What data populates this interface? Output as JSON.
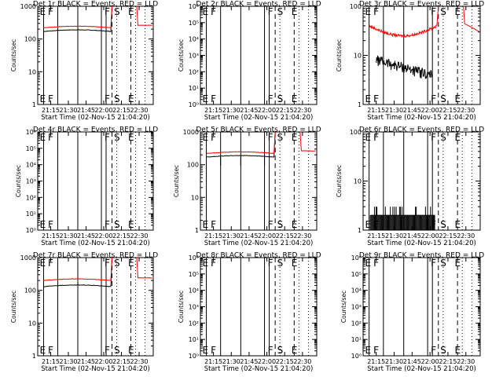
{
  "figure": {
    "colors": {
      "events": "#000000",
      "lld": "#ff0000",
      "background": "#ffffff"
    },
    "marker_label_ids": [
      "E",
      "F",
      "F",
      "S",
      "E"
    ],
    "marker_times": [
      "21:09",
      "21:21",
      "21:58",
      "22:07",
      "22:23"
    ]
  },
  "chart_data": [
    {
      "type": "line",
      "title": "Det 1r BLACK = Events, RED = LLD",
      "xlabel": "Start Time (02-Nov-15 21:04:20)",
      "ylabel": "Counts/sec",
      "yscale": "log",
      "ylim": [
        1,
        1000
      ],
      "yticks": [
        "1",
        "10",
        "100",
        "1000"
      ],
      "xticks": [
        "21:15",
        "21:30",
        "21:45",
        "22:00",
        "22:15",
        "22:30"
      ],
      "marker_labels": [
        "E",
        "F",
        "F",
        "S",
        "E"
      ],
      "series": [
        {
          "name": "Events",
          "color": "black",
          "approx_level": 170,
          "shape": "saa-plateau"
        },
        {
          "name": "LLD",
          "color": "red",
          "approx_level": 220,
          "shape": "saa-plateau"
        }
      ]
    },
    {
      "type": "line",
      "title": "Det 2r BLACK = Events, RED = LLD",
      "xlabel": "Start Time (02-Nov-15 21:04:20)",
      "ylabel": "Counts/sec",
      "yscale": "log",
      "ylim": [
        1,
        1000000
      ],
      "yticks": [
        "10⁰",
        "10¹",
        "10²",
        "10³",
        "10⁴",
        "10⁵",
        "10⁶"
      ],
      "xticks": [
        "21:15",
        "21:30",
        "21:45",
        "22:00",
        "22:15",
        "22:30"
      ],
      "marker_labels": [
        "E",
        "F",
        "F",
        "S",
        "E"
      ],
      "series": []
    },
    {
      "type": "line",
      "title": "Det 3r BLACK = Events, RED = LLD",
      "xlabel": "Start Time (02-Nov-15 21:04:20)",
      "ylabel": "Counts/sec",
      "yscale": "log",
      "ylim": [
        1,
        100
      ],
      "yticks": [
        "1",
        "10",
        "100"
      ],
      "xticks": [
        "21:15",
        "21:30",
        "21:45",
        "22:00",
        "22:15",
        "22:30"
      ],
      "marker_labels": [
        "E",
        "F",
        "F",
        "S",
        "E"
      ],
      "series": [
        {
          "name": "Events",
          "color": "black",
          "approx_level": 5,
          "shape": "noisy-decay"
        },
        {
          "name": "LLD",
          "color": "red",
          "approx_level": 25,
          "shape": "bowl"
        }
      ]
    },
    {
      "type": "line",
      "title": "Det 4r BLACK = Events, RED = LLD",
      "xlabel": "Start Time (02-Nov-15 21:04:20)",
      "ylabel": "Counts/sec",
      "yscale": "log",
      "ylim": [
        1,
        1000000
      ],
      "yticks": [
        "10⁰",
        "10¹",
        "10²",
        "10³",
        "10⁴",
        "10⁵",
        "10⁶"
      ],
      "xticks": [
        "21:15",
        "21:30",
        "21:45",
        "22:00",
        "22:15",
        "22:30"
      ],
      "marker_labels": [
        "E",
        "F",
        "F",
        "S",
        "E"
      ],
      "series": []
    },
    {
      "type": "line",
      "title": "Det 5r BLACK = Events, RED = LLD",
      "xlabel": "Start Time (02-Nov-15 21:04:20)",
      "ylabel": "Counts/sec",
      "yscale": "log",
      "ylim": [
        1,
        1000
      ],
      "yticks": [
        "1",
        "10",
        "100",
        "1000"
      ],
      "xticks": [
        "21:15",
        "21:30",
        "21:45",
        "22:00",
        "22:15",
        "22:30"
      ],
      "marker_labels": [
        "E",
        "F",
        "F",
        "S",
        "E"
      ],
      "series": [
        {
          "name": "Events",
          "color": "black",
          "approx_level": 170,
          "shape": "saa-plateau"
        },
        {
          "name": "LLD",
          "color": "red",
          "approx_level": 220,
          "shape": "saa-plateau"
        }
      ]
    },
    {
      "type": "line",
      "title": "Det 6r BLACK = Events, RED = LLD",
      "xlabel": "Start Time (02-Nov-15 21:04:20)",
      "ylabel": "Counts/sec",
      "yscale": "log",
      "ylim": [
        1,
        100
      ],
      "yticks": [
        "1",
        "10",
        "100"
      ],
      "xticks": [
        "21:15",
        "21:30",
        "21:45",
        "22:00",
        "22:15",
        "22:30"
      ],
      "marker_labels": [
        "E",
        "F",
        "F",
        "S",
        "E"
      ],
      "series": [
        {
          "name": "Events",
          "color": "black",
          "approx_level": 1.5,
          "shape": "sparse-spikes"
        }
      ]
    },
    {
      "type": "line",
      "title": "Det 7r BLACK = Events, RED = LLD",
      "xlabel": "Start Time (02-Nov-15 21:04:20)",
      "ylabel": "Counts/sec",
      "yscale": "log",
      "ylim": [
        1,
        1000
      ],
      "yticks": [
        "1",
        "10",
        "100",
        "1000"
      ],
      "xticks": [
        "21:15",
        "21:30",
        "21:45",
        "22:00",
        "22:15",
        "22:30"
      ],
      "marker_labels": [
        "E",
        "F",
        "F",
        "S",
        "E"
      ],
      "series": [
        {
          "name": "Events",
          "color": "black",
          "approx_level": 130,
          "shape": "saa-plateau"
        },
        {
          "name": "LLD",
          "color": "red",
          "approx_level": 200,
          "shape": "saa-plateau"
        }
      ]
    },
    {
      "type": "line",
      "title": "Det 8r BLACK = Events, RED = LLD",
      "xlabel": "Start Time (02-Nov-15 21:04:20)",
      "ylabel": "Counts/sec",
      "yscale": "log",
      "ylim": [
        1,
        1000000
      ],
      "yticks": [
        "10⁰",
        "10¹",
        "10²",
        "10³",
        "10⁴",
        "10⁵",
        "10⁶"
      ],
      "xticks": [
        "21:15",
        "21:30",
        "21:45",
        "22:00",
        "22:15",
        "22:30"
      ],
      "marker_labels": [
        "E",
        "F",
        "F",
        "S",
        "E"
      ],
      "series": []
    },
    {
      "type": "line",
      "title": "Det 9r BLACK = Events, RED = LLD",
      "xlabel": "Start Time (02-Nov-15 21:04:20)",
      "ylabel": "Counts/sec",
      "yscale": "log",
      "ylim": [
        1,
        1000000
      ],
      "yticks": [
        "10⁰",
        "10¹",
        "10²",
        "10³",
        "10⁴",
        "10⁵",
        "10⁶"
      ],
      "xticks": [
        "21:15",
        "21:30",
        "21:45",
        "22:00",
        "22:15",
        "22:30"
      ],
      "marker_labels": [
        "E",
        "F",
        "F",
        "S",
        "E"
      ],
      "series": []
    }
  ]
}
